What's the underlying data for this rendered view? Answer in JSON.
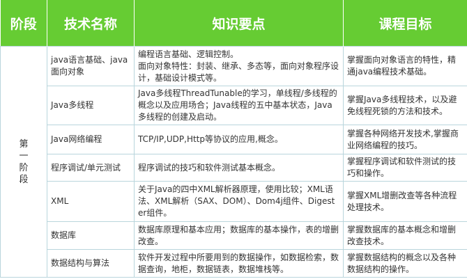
{
  "header": {
    "stage": "阶段",
    "tech": "技术名称",
    "knowledge": "知识要点",
    "goal": "课程目标"
  },
  "stage_label": "第一阶段",
  "rows": [
    {
      "tech": "java语言基础、java面向对象",
      "knowledge": "编程语言基础、逻辑控制。\n面向对象特性：封装、继承、多态等，面向对象程序设计，基础设计模式等。",
      "goal": "掌握面向对象语言的特性，精通java编程技术基础。"
    },
    {
      "tech": "Java多线程",
      "knowledge": "Java多线程ThreadTunable的学习，单线程/多线程的概念以及应用场合；Java线程的五中基本状态，Java多线程的创建及启动。",
      "goal": "掌握Java多线程技术，以及避免线程死锁的方法和技术。"
    },
    {
      "tech": "Java网络编程",
      "knowledge": "TCP/IP,UDP,Http等协议的应用,概念。",
      "goal": "掌握各种网络开发技术,掌握商业网络编程的技巧。"
    },
    {
      "tech": "程序调试/单元测试",
      "knowledge": "程序调试的技巧和软件测试基本概念。",
      "goal": "掌握程序调试和软件测试的技巧和操作。"
    },
    {
      "tech": "XML",
      "knowledge": "关于Java的四中XML解析器原理，使用比较；XML语法、XML解析（SAX、DOM）、Dom4j组件、Digester组件。",
      "goal": "掌握XML增删改查等各种流程处理技术。"
    },
    {
      "tech": "数据库",
      "knowledge": "数据库原理和基本应用；数据库的基本操作，表的增删改查。",
      "goal": "掌握数据库的基本概念和增删改查技术。"
    },
    {
      "tech": "数据结构与算法",
      "knowledge": "软件开发过程中所要用到的数据操作，如数据检索，数据查询，地柜，数据链表，数据堆栈等。",
      "goal": "掌握数据结构的概念以及各种数据结构的操作。"
    }
  ]
}
